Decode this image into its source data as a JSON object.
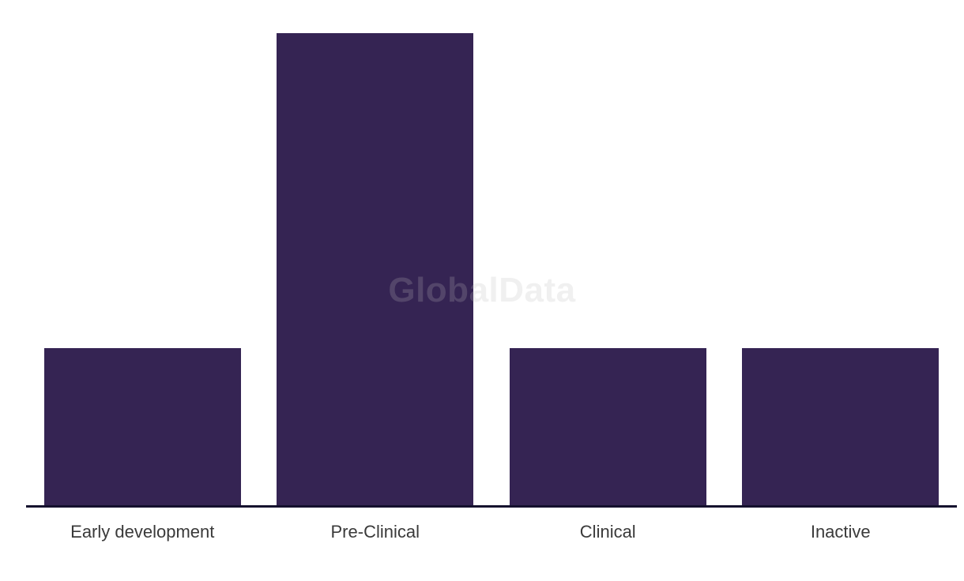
{
  "chart_data": {
    "type": "bar",
    "title": "",
    "xlabel": "",
    "ylabel": "",
    "categories": [
      "Early development",
      "Pre-Clinical",
      "Clinical",
      "Inactive"
    ],
    "values": [
      1,
      3,
      1,
      1
    ],
    "ylim": [
      0,
      3
    ],
    "grid": false,
    "legend": false,
    "y_axis_visible": false,
    "watermark": "GlobalData"
  },
  "colors": {
    "bar": "#352453",
    "axis_line": "#15112e",
    "axis_label": "#3a3a3a",
    "watermark": "#bcbcbc",
    "background": "#ffffff"
  }
}
